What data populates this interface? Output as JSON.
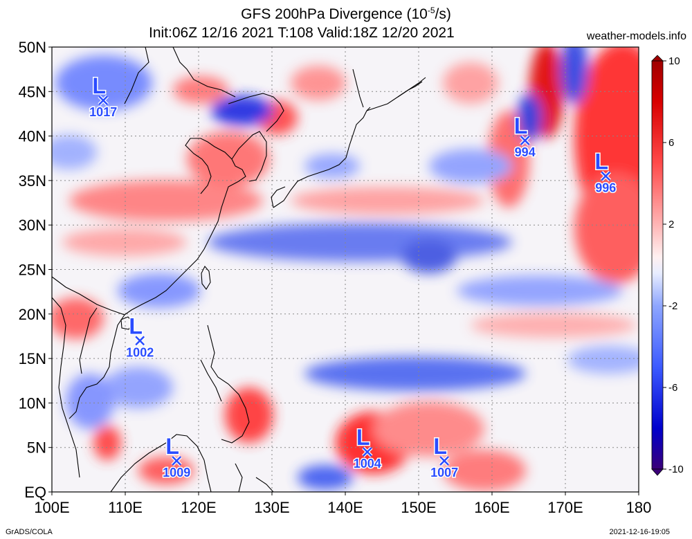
{
  "title": {
    "line1_prefix": "GFS 200hPa Divergence (10",
    "line1_exp": "-5",
    "line1_suffix": "/s)",
    "line2": "Init:06Z 12/16 2021 T:108 Valid:18Z 12/20 2021"
  },
  "website": "weather-models.info",
  "footer": {
    "left": "GrADS/COLA",
    "right": "2021-12-16-19:05"
  },
  "map": {
    "lon_range": [
      100,
      180
    ],
    "lat_range": [
      0,
      50
    ],
    "x_ticks": [
      "100E",
      "110E",
      "120E",
      "130E",
      "140E",
      "150E",
      "160E",
      "170E",
      "180"
    ],
    "y_ticks": [
      "EQ",
      "5N",
      "10N",
      "15N",
      "20N",
      "25N",
      "30N",
      "35N",
      "40N",
      "45N",
      "50N"
    ],
    "gridlines": "dotted"
  },
  "colorbar": {
    "labels": [
      "10",
      "6",
      "2",
      "-2",
      "-6",
      "-10"
    ],
    "colors": [
      "#3a0078",
      "#0000cc",
      "#3c5aff",
      "#8ea6ff",
      "#dfe6ff",
      "#ffffff",
      "#ffd6d6",
      "#ff8a8a",
      "#ff3c3c",
      "#d80000",
      "#a00000"
    ],
    "range": [
      -10,
      10
    ]
  },
  "lows": [
    {
      "label": "1017",
      "lon": 107,
      "lat": 44
    },
    {
      "label": "1002",
      "lon": 112,
      "lat": 17
    },
    {
      "label": "1009",
      "lon": 117,
      "lat": 3.5
    },
    {
      "label": "1004",
      "lon": 143,
      "lat": 4.5
    },
    {
      "label": "1007",
      "lon": 153.5,
      "lat": 3.5
    },
    {
      "label": "994",
      "lon": 164.5,
      "lat": 39.5
    },
    {
      "label": "996",
      "lon": 175.5,
      "lat": 35.5
    }
  ],
  "low_symbol": "L",
  "field_color_low": "#2a4cff",
  "field_color_high": "#ff2020"
}
